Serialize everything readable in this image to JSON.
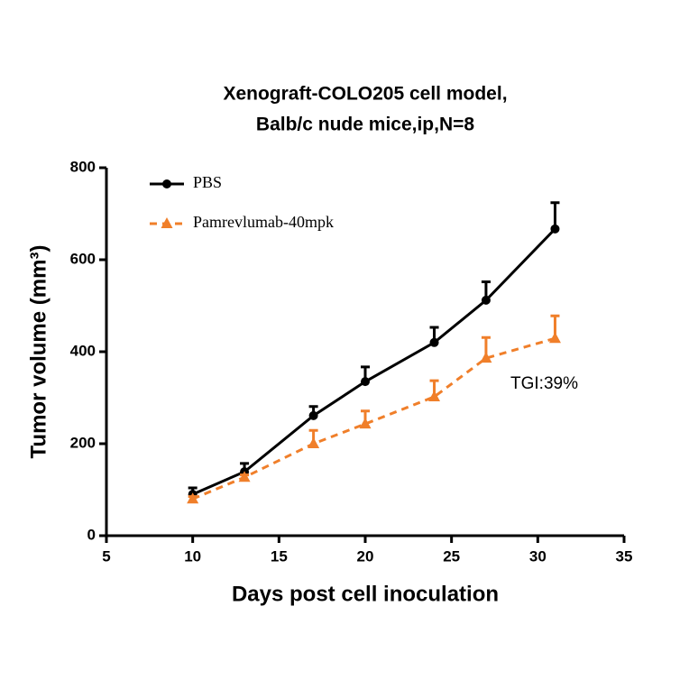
{
  "chart_data": {
    "type": "line",
    "title": [
      "Xenograft-COLO205 cell model,",
      "Balb/c nude mice,ip,N=8"
    ],
    "x_label": "Days post cell inoculation",
    "y_label": "Tumor volume (mm³)",
    "annotation": "TGI:39%",
    "x": [
      10,
      13,
      17,
      20,
      24,
      27,
      31
    ],
    "series": [
      {
        "name": "PBS",
        "color": "#000000",
        "marker": "circle",
        "dashed": false,
        "values": [
          90,
          139,
          261,
          335,
          420,
          512,
          667
        ],
        "errors": [
          14,
          18,
          20,
          32,
          33,
          40,
          57
        ]
      },
      {
        "name": "Pamrevlumab-40mpk",
        "color": "#f07f2a",
        "marker": "triangle",
        "dashed": true,
        "values": [
          80,
          127,
          200,
          243,
          302,
          386,
          429
        ],
        "errors": [
          5,
          5,
          29,
          28,
          35,
          45,
          49
        ]
      }
    ],
    "xlim": [
      5,
      35
    ],
    "xticks": [
      5,
      10,
      15,
      20,
      25,
      30,
      35
    ],
    "ylim": [
      0,
      800
    ],
    "yticks": [
      0,
      200,
      400,
      600,
      800
    ],
    "legend": "upper left"
  }
}
